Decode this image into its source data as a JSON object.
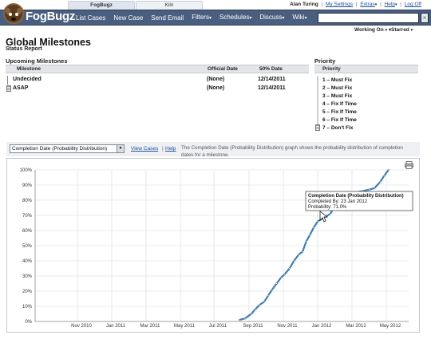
{
  "tabs": [
    {
      "label": "FogBugz",
      "active": true
    },
    {
      "label": "Kiln",
      "active": false
    }
  ],
  "user": {
    "name": "Alan Turing",
    "links": [
      "My Settings",
      "Extras",
      "Help",
      "Log Off"
    ]
  },
  "nav": {
    "logo": "FogBugz",
    "items": [
      {
        "label": "List Cases",
        "dropdown": false
      },
      {
        "label": "New Case",
        "dropdown": false
      },
      {
        "label": "Send Email",
        "dropdown": false
      },
      {
        "label": "Filters",
        "dropdown": true
      },
      {
        "label": "Schedules",
        "dropdown": true
      },
      {
        "label": "Discuss",
        "dropdown": true
      },
      {
        "label": "Wiki",
        "dropdown": true
      }
    ],
    "search_value": "",
    "search_button": "»"
  },
  "subbar": {
    "working_on": "Working On",
    "starred": "Starred"
  },
  "page": {
    "title": "Global Milestones",
    "subtitle": "Status Report"
  },
  "milestones": {
    "heading": "Upcoming Milestones",
    "columns": [
      "Milestone",
      "Official Date",
      "50% Date"
    ],
    "rows": [
      {
        "name": "Undecided",
        "official": "(None)",
        "half": "12/14/2011"
      },
      {
        "name": "ASAP",
        "official": "(None)",
        "half": "12/14/2011"
      }
    ]
  },
  "priority": {
    "heading": "Priority",
    "column": "Priority",
    "items": [
      "1 – Must Fix",
      "2 – Must Fix",
      "3 – Must Fix",
      "4 – Fix If Time",
      "5 – Fix If Time",
      "6 – Fix If Time",
      "7 – Don't Fix"
    ]
  },
  "chart_toolbar": {
    "selected": "Completion Date (Probability Distribution)",
    "view_cases": "View Cases",
    "help": "Help",
    "description": "The Completion Date (Probability Distribution) graph shows the probability distribution of completion dates for a milestone."
  },
  "chart_data": {
    "type": "line",
    "title": "",
    "xlabel": "",
    "ylabel": "",
    "x_ticks": [
      "Nov 2010",
      "Jan 2011",
      "Mar 2011",
      "May 2011",
      "Jul 2011",
      "Sep 2011",
      "Nov 2011",
      "Jan 2012",
      "Mar 2012",
      "May 2012"
    ],
    "y_ticks": [
      "0%",
      "10%",
      "20%",
      "30%",
      "40%",
      "50%",
      "60%",
      "70%",
      "80%",
      "90%",
      "100%"
    ],
    "ylim": [
      0,
      100
    ],
    "line_color": "#3b7fb6",
    "series": [
      {
        "x": [
          "2011-08-15",
          "2011-08-25",
          "2011-09-05",
          "2011-09-12",
          "2011-09-20",
          "2011-09-28",
          "2011-10-05",
          "2011-10-12",
          "2011-10-20",
          "2011-10-28",
          "2011-11-03",
          "2011-11-12",
          "2011-11-20",
          "2011-11-28",
          "2011-12-05",
          "2011-12-12",
          "2011-12-18",
          "2011-12-25",
          "2012-01-01",
          "2012-01-10",
          "2012-01-23",
          "2012-02-03",
          "2012-02-15",
          "2012-03-05",
          "2012-03-20",
          "2012-04-01",
          "2012-04-10",
          "2012-04-20",
          "2012-04-27",
          "2012-05-05"
        ],
        "y": [
          1,
          2,
          5,
          8,
          11,
          13,
          17,
          21,
          25,
          29,
          31,
          35,
          40,
          44,
          46,
          53,
          57,
          62,
          66,
          68,
          71,
          78,
          82,
          85,
          86,
          87,
          88,
          92,
          96,
          100
        ]
      }
    ],
    "tooltip": {
      "title": "Completion Date (Probability Distribution)",
      "line1": "Completed By: 23 Jan 2012",
      "line2": "Probability: 71.0%"
    }
  }
}
